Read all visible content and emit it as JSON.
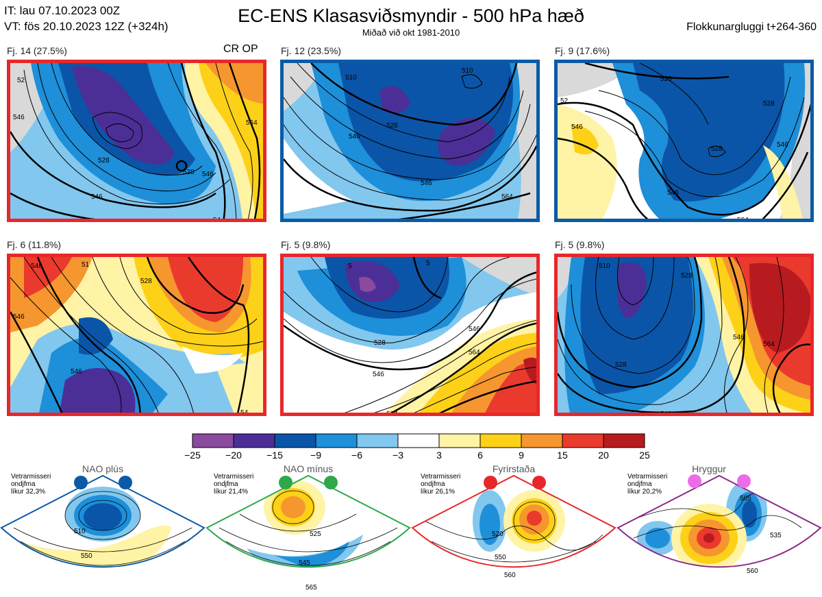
{
  "header": {
    "it_line": "IT: lau 07.10.2023 00Z",
    "vt_line": "VT: fös 20.10.2023 12Z  (+324h)",
    "title": "EC-ENS Klasasviðsmyndir - 500 hPa hæð",
    "subtitle": "Miðað við okt 1981-2010",
    "window": "Flokkunargluggi t+264-360"
  },
  "panels": [
    {
      "label": "Fj. 14 (27.5%)",
      "extra": "CR OP",
      "frame_color": "#e8272a",
      "contours": [
        "52",
        "528",
        "528",
        "546",
        "546",
        "546",
        "564",
        "54"
      ]
    },
    {
      "label": "Fj. 12 (23.5%)",
      "frame_color": "#0b5aa6",
      "contours": [
        "510",
        "510",
        "528",
        "546",
        "546",
        "564",
        "564"
      ]
    },
    {
      "label": "Fj. 9 (17.6%)",
      "frame_color": "#0b5aa6",
      "contours": [
        "528",
        "528",
        "546",
        "528",
        "546",
        "546",
        "564",
        "582",
        "52"
      ]
    },
    {
      "label": "Fj. 6 (11.8%)",
      "frame_color": "#e8272a",
      "contours": [
        "546",
        "528",
        "546",
        "546",
        "51",
        "54"
      ]
    },
    {
      "label": "Fj. 5 (9.8%)",
      "frame_color": "#e8272a",
      "contours": [
        "546",
        "528",
        "546",
        "564",
        "564",
        "582",
        "5",
        "5"
      ]
    },
    {
      "label": "Fj. 5 (9.8%)",
      "frame_color": "#e8272a",
      "contours": [
        "528",
        "528",
        "546",
        "564",
        "546",
        "54",
        "510"
      ]
    }
  ],
  "colorbar": {
    "ticks": [
      "−25",
      "−20",
      "−15",
      "−9",
      "−6",
      "−3",
      "3",
      "6",
      "9",
      "15",
      "20",
      "25"
    ],
    "colors": [
      "#8a4a9e",
      "#4b2f96",
      "#0b55a8",
      "#1e8fd9",
      "#82c7ee",
      "#ffffff",
      "#fff3a6",
      "#fdd118",
      "#f6962f",
      "#ea3a2d",
      "#b81b1f"
    ]
  },
  "regimes": [
    {
      "title": "NAO plús",
      "meta": [
        "Vetrarmisseri",
        "ondjfma",
        "líkur 32,3%"
      ],
      "color": "#0b5aa6",
      "dot_color": "#0b5aa6",
      "contours": [
        "510",
        "550"
      ]
    },
    {
      "title": "NAO mínus",
      "meta": [
        "Vetrarmisseri",
        "ondjfma",
        "líkur 21,4%"
      ],
      "color": "#2ea84a",
      "dot_color": "#2ea84a",
      "contours": [
        "525",
        "545",
        "565"
      ]
    },
    {
      "title": "Fyrirstaða",
      "meta": [
        "Vetrarmisseri",
        "ondjfma",
        "líkur 26,1%"
      ],
      "color": "#e8272a",
      "dot_color": "#e8272a",
      "contours": [
        "520",
        "550",
        "560"
      ]
    },
    {
      "title": "Hryggur",
      "meta": [
        "Vetrarmisseri",
        "ondjfma",
        "líkur 20,2%"
      ],
      "color": "#8a2a8a",
      "dot_color": "#ee6be8",
      "contours": [
        "505",
        "535",
        "560"
      ]
    }
  ]
}
